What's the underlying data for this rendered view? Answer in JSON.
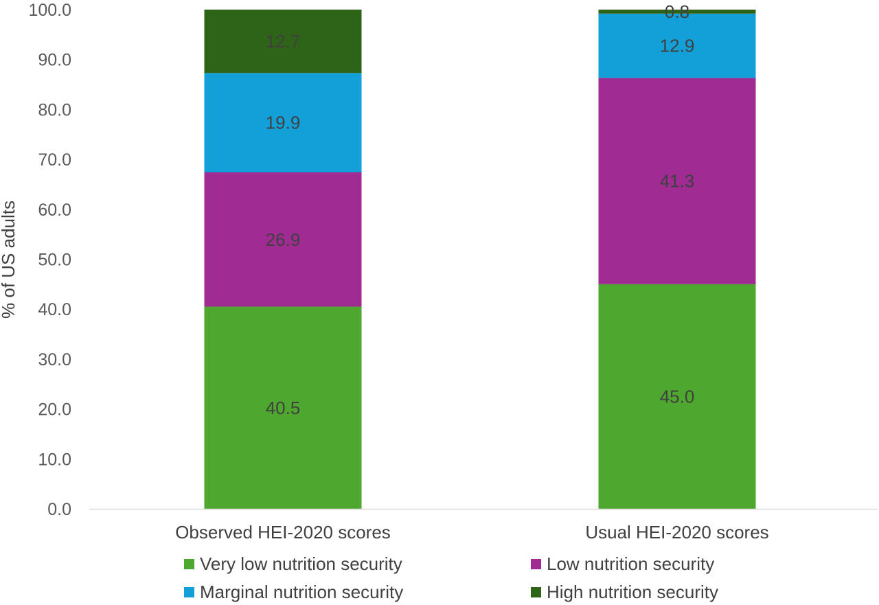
{
  "chart_data": {
    "type": "bar",
    "stacked": true,
    "categories": [
      "Observed HEI-2020 scores",
      "Usual HEI-2020 scores"
    ],
    "series": [
      {
        "name": "Very low nutrition security",
        "values": [
          40.5,
          45.0
        ],
        "color": "#4ea72e"
      },
      {
        "name": "Low nutrition security",
        "values": [
          26.9,
          41.3
        ],
        "color": "#a02b93"
      },
      {
        "name": "Marginal nutrition security",
        "values": [
          19.9,
          12.9
        ],
        "color": "#139fd8"
      },
      {
        "name": "High nutrition security",
        "values": [
          12.7,
          0.8
        ],
        "color": "#2e6418"
      }
    ],
    "ylabel": "% of US adults",
    "ylim": [
      0,
      100
    ],
    "yticks": [
      "0.0",
      "10.0",
      "20.0",
      "30.0",
      "40.0",
      "50.0",
      "60.0",
      "70.0",
      "80.0",
      "90.0",
      "100.0"
    ],
    "grid": false,
    "legend_position": "bottom"
  }
}
